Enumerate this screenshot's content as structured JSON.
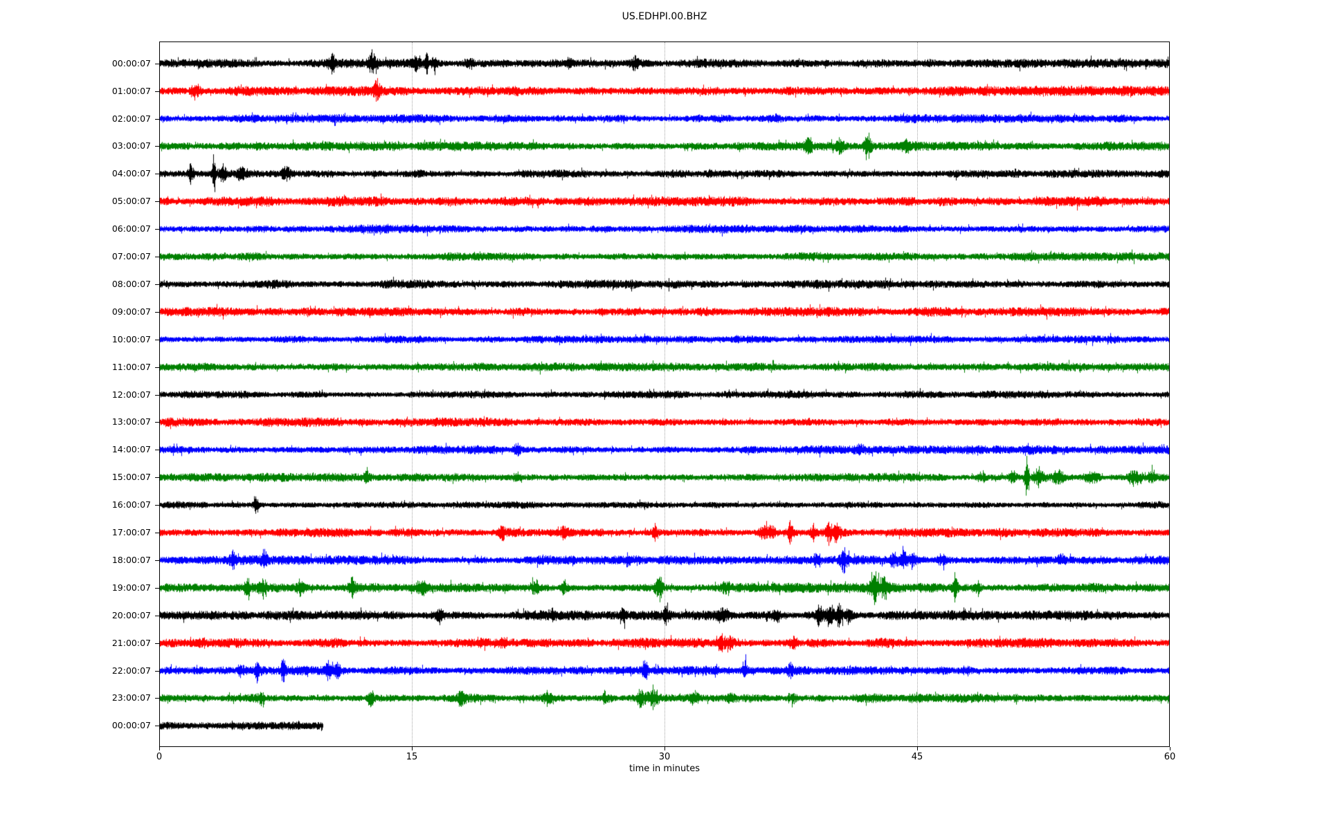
{
  "title": "US.EDHPI.00.BHZ",
  "xlabel": "time in minutes",
  "colors": {
    "trace_cycle": [
      "#000000",
      "#ff0000",
      "#0000ff",
      "#008000"
    ],
    "grid": "#a6a6a6",
    "axis": "#000000",
    "background": "#ffffff"
  },
  "chart_data": {
    "type": "line",
    "title": "US.EDHPI.00.BHZ",
    "xlabel": "time in minutes",
    "xlim": [
      0,
      60
    ],
    "x_ticks": [
      "0",
      "15",
      "30",
      "45",
      "60"
    ],
    "x_tick_values": [
      0,
      15,
      30,
      45,
      60
    ],
    "gridlines_minutes": [
      15,
      30,
      45
    ],
    "grid_style": "dotted-vertical",
    "legend": "none",
    "description": "24-hour helicorder day plot, one trace row per hour, colors cycling black/red/blue/green; events listed as [minute, amplitude_px, width_minutes]",
    "rows": [
      {
        "label": "00:00:07",
        "color": "#000000",
        "base_amp": 4.5,
        "end_min": 60,
        "events": [
          [
            10.2,
            12,
            0.2
          ],
          [
            12.6,
            13,
            0.25
          ],
          [
            15.2,
            8,
            0.15
          ],
          [
            15.8,
            15,
            0.12
          ],
          [
            16.3,
            8,
            0.15
          ],
          [
            18.4,
            6,
            0.2
          ],
          [
            24.3,
            7,
            0.15
          ],
          [
            28.2,
            7,
            0.2
          ]
        ]
      },
      {
        "label": "01:00:07",
        "color": "#ff0000",
        "base_amp": 5.0,
        "end_min": 60,
        "events": [
          [
            2.1,
            9,
            0.25
          ],
          [
            12.9,
            12,
            0.2
          ]
        ]
      },
      {
        "label": "02:00:07",
        "color": "#0000ff",
        "base_amp": 4.3,
        "end_min": 60,
        "events": [
          [
            36.5,
            4,
            0.4
          ]
        ]
      },
      {
        "label": "03:00:07",
        "color": "#008000",
        "base_amp": 4.6,
        "end_min": 60,
        "events": [
          [
            38.5,
            14,
            0.18
          ],
          [
            40.4,
            11,
            0.2
          ],
          [
            42.0,
            16,
            0.22
          ],
          [
            44.3,
            6,
            0.25
          ]
        ]
      },
      {
        "label": "04:00:07",
        "color": "#000000",
        "base_amp": 4.0,
        "end_min": 60,
        "events": [
          [
            1.8,
            13,
            0.15
          ],
          [
            3.2,
            26,
            0.1
          ],
          [
            3.7,
            12,
            0.18
          ],
          [
            4.8,
            7,
            0.2
          ],
          [
            7.5,
            8,
            0.25
          ]
        ]
      },
      {
        "label": "05:00:07",
        "color": "#ff0000",
        "base_amp": 5.0,
        "end_min": 60,
        "events": []
      },
      {
        "label": "06:00:07",
        "color": "#0000ff",
        "base_amp": 4.3,
        "end_min": 60,
        "events": []
      },
      {
        "label": "07:00:07",
        "color": "#008000",
        "base_amp": 4.3,
        "end_min": 60,
        "events": []
      },
      {
        "label": "08:00:07",
        "color": "#000000",
        "base_amp": 4.6,
        "end_min": 60,
        "events": []
      },
      {
        "label": "09:00:07",
        "color": "#ff0000",
        "base_amp": 4.6,
        "end_min": 60,
        "events": []
      },
      {
        "label": "10:00:07",
        "color": "#0000ff",
        "base_amp": 3.8,
        "end_min": 60,
        "events": []
      },
      {
        "label": "11:00:07",
        "color": "#008000",
        "base_amp": 4.3,
        "end_min": 60,
        "events": []
      },
      {
        "label": "12:00:07",
        "color": "#000000",
        "base_amp": 3.8,
        "end_min": 60,
        "events": []
      },
      {
        "label": "13:00:07",
        "color": "#ff0000",
        "base_amp": 4.6,
        "end_min": 60,
        "events": []
      },
      {
        "label": "14:00:07",
        "color": "#0000ff",
        "base_amp": 4.3,
        "end_min": 60,
        "events": [
          [
            21.2,
            10,
            0.15
          ],
          [
            41.5,
            5,
            0.25
          ],
          [
            51.5,
            5,
            0.3
          ]
        ]
      },
      {
        "label": "15:00:07",
        "color": "#008000",
        "base_amp": 4.3,
        "end_min": 60,
        "events": [
          [
            12.3,
            6,
            0.2
          ],
          [
            21.2,
            6,
            0.2
          ],
          [
            48.8,
            6,
            0.25
          ],
          [
            50.6,
            8,
            0.2
          ],
          [
            51.45,
            38,
            0.1
          ],
          [
            52.2,
            12,
            0.3
          ],
          [
            53.3,
            10,
            0.3
          ],
          [
            55.3,
            7,
            0.35
          ],
          [
            57.9,
            11,
            0.4
          ],
          [
            58.9,
            9,
            0.25
          ]
        ]
      },
      {
        "label": "16:00:07",
        "color": "#000000",
        "base_amp": 3.8,
        "end_min": 60,
        "events": [
          [
            5.7,
            12,
            0.15
          ]
        ]
      },
      {
        "label": "17:00:07",
        "color": "#ff0000",
        "base_amp": 4.6,
        "end_min": 60,
        "events": [
          [
            20.3,
            12,
            0.15
          ],
          [
            24.0,
            6,
            0.25
          ],
          [
            29.4,
            9,
            0.18
          ],
          [
            35.8,
            10,
            0.25
          ],
          [
            36.3,
            8,
            0.25
          ],
          [
            37.4,
            13,
            0.18
          ],
          [
            38.8,
            8,
            0.2
          ],
          [
            39.7,
            15,
            0.18
          ],
          [
            40.2,
            10,
            0.2
          ]
        ]
      },
      {
        "label": "18:00:07",
        "color": "#0000ff",
        "base_amp": 4.6,
        "end_min": 60,
        "events": [
          [
            4.3,
            9,
            0.18
          ],
          [
            6.2,
            11,
            0.18
          ],
          [
            27.8,
            6,
            0.2
          ],
          [
            39.0,
            10,
            0.2
          ],
          [
            40.6,
            13,
            0.22
          ],
          [
            43.6,
            8,
            0.25
          ],
          [
            44.2,
            11,
            0.22
          ],
          [
            44.7,
            8,
            0.2
          ],
          [
            46.4,
            8,
            0.2
          ],
          [
            53.5,
            6,
            0.25
          ]
        ]
      },
      {
        "label": "19:00:07",
        "color": "#008000",
        "base_amp": 4.8,
        "end_min": 60,
        "events": [
          [
            5.2,
            13,
            0.18
          ],
          [
            6.1,
            10,
            0.18
          ],
          [
            8.3,
            9,
            0.2
          ],
          [
            11.4,
            12,
            0.18
          ],
          [
            15.5,
            9,
            0.25
          ],
          [
            22.3,
            11,
            0.2
          ],
          [
            24.0,
            8,
            0.2
          ],
          [
            29.6,
            17,
            0.22
          ],
          [
            33.6,
            8,
            0.25
          ],
          [
            42.4,
            18,
            0.3
          ],
          [
            43.0,
            13,
            0.25
          ],
          [
            47.2,
            16,
            0.15
          ],
          [
            48.5,
            9,
            0.2
          ]
        ]
      },
      {
        "label": "20:00:07",
        "color": "#000000",
        "base_amp": 4.8,
        "end_min": 60,
        "events": [
          [
            16.6,
            8,
            0.2
          ],
          [
            23.3,
            8,
            0.15
          ],
          [
            27.5,
            7,
            0.2
          ],
          [
            30.05,
            13,
            0.15
          ],
          [
            33.4,
            9,
            0.25
          ],
          [
            36.6,
            10,
            0.2
          ],
          [
            39.2,
            13,
            0.25
          ],
          [
            39.8,
            19,
            0.2
          ],
          [
            40.3,
            15,
            0.22
          ],
          [
            40.9,
            10,
            0.2
          ]
        ]
      },
      {
        "label": "21:00:07",
        "color": "#ff0000",
        "base_amp": 5.0,
        "end_min": 60,
        "events": [
          [
            20.3,
            5,
            0.25
          ],
          [
            33.3,
            13,
            0.25
          ],
          [
            33.9,
            9,
            0.22
          ],
          [
            37.6,
            8,
            0.2
          ]
        ]
      },
      {
        "label": "22:00:07",
        "color": "#0000ff",
        "base_amp": 4.6,
        "end_min": 60,
        "events": [
          [
            4.8,
            7,
            0.18
          ],
          [
            5.8,
            9,
            0.15
          ],
          [
            7.3,
            16,
            0.12
          ],
          [
            10.0,
            11,
            0.15
          ],
          [
            10.5,
            9,
            0.15
          ],
          [
            28.8,
            13,
            0.15
          ],
          [
            34.7,
            10,
            0.18
          ],
          [
            37.4,
            7,
            0.18
          ],
          [
            47.9,
            5,
            0.2
          ]
        ]
      },
      {
        "label": "23:00:07",
        "color": "#008000",
        "base_amp": 4.6,
        "end_min": 60,
        "events": [
          [
            6.0,
            7,
            0.18
          ],
          [
            12.5,
            11,
            0.15
          ],
          [
            17.9,
            10,
            0.2
          ],
          [
            23.0,
            8,
            0.25
          ],
          [
            26.5,
            8,
            0.25
          ],
          [
            28.6,
            12,
            0.3
          ],
          [
            29.3,
            14,
            0.25
          ],
          [
            31.7,
            6,
            0.25
          ],
          [
            33.9,
            6,
            0.25
          ],
          [
            37.5,
            6,
            0.25
          ]
        ]
      },
      {
        "label": "00:00:07",
        "color": "#000000",
        "base_amp": 5.0,
        "end_min": 9.7,
        "events": []
      }
    ]
  }
}
